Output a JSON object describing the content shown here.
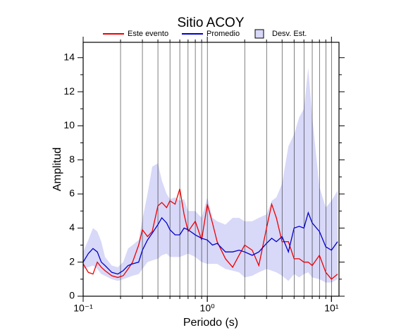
{
  "chart_data": {
    "type": "line",
    "title": "Sitio ACOY",
    "xlabel": "Periodo (s)",
    "ylabel": "Amplitud",
    "x_log": true,
    "grid": true,
    "xlim": [
      0.1,
      11.5
    ],
    "ylim": [
      0,
      14.9
    ],
    "xticks": [
      {
        "value": 0.1,
        "label": "10⁻¹"
      },
      {
        "value": 1,
        "label": "10⁰"
      },
      {
        "value": 10,
        "label": "10¹"
      }
    ],
    "yticks": [
      0,
      2,
      4,
      6,
      8,
      10,
      12,
      14
    ],
    "x": [
      0.1,
      0.11,
      0.12,
      0.13,
      0.14,
      0.15,
      0.17,
      0.19,
      0.21,
      0.23,
      0.25,
      0.28,
      0.3,
      0.33,
      0.36,
      0.4,
      0.43,
      0.47,
      0.5,
      0.55,
      0.6,
      0.65,
      0.7,
      0.8,
      0.9,
      1.0,
      1.1,
      1.2,
      1.4,
      1.6,
      1.8,
      2.0,
      2.3,
      2.6,
      3.0,
      3.3,
      3.6,
      4.0,
      4.5,
      5.0,
      5.5,
      6.0,
      6.5,
      7.0,
      8.0,
      9.0,
      10,
      11.2
    ],
    "series": [
      {
        "name": "Desv. Est.",
        "color": "#d8d8f8",
        "kind": "band",
        "upper": [
          2.6,
          3.3,
          4.0,
          3.8,
          3.2,
          2.3,
          1.8,
          1.7,
          2.0,
          2.8,
          3.0,
          3.3,
          4.5,
          6.0,
          7.6,
          7.8,
          6.8,
          6.0,
          5.7,
          5.8,
          5.6,
          5.7,
          5.0,
          5.0,
          4.6,
          5.8,
          4.6,
          4.4,
          4.2,
          4.6,
          4.6,
          4.4,
          4.4,
          4.6,
          4.8,
          5.6,
          5.8,
          6.6,
          8.8,
          9.5,
          10.5,
          11.0,
          13.4,
          10.5,
          6.4,
          5.2,
          5.6,
          6.2
        ],
        "lower": [
          1.6,
          1.7,
          1.8,
          1.6,
          1.3,
          1.2,
          1.0,
          0.9,
          1.0,
          1.1,
          1.2,
          1.3,
          1.6,
          2.0,
          2.1,
          2.2,
          2.4,
          2.5,
          2.3,
          2.3,
          2.3,
          2.4,
          2.5,
          2.3,
          2.0,
          1.9,
          1.9,
          1.9,
          1.6,
          1.5,
          1.4,
          1.1,
          1.2,
          1.4,
          1.6,
          1.5,
          1.4,
          1.2,
          0.9,
          1.3,
          1.1,
          1.3,
          1.4,
          1.1,
          1.0,
          0.8,
          0.8,
          1.0
        ]
      },
      {
        "name": "Este evento",
        "color": "#ee0000",
        "kind": "line",
        "values": [
          1.9,
          1.4,
          1.3,
          2.0,
          1.7,
          1.5,
          1.2,
          1.1,
          1.2,
          1.6,
          2.0,
          3.0,
          3.9,
          3.5,
          3.8,
          5.3,
          5.5,
          5.2,
          5.6,
          5.4,
          6.3,
          4.8,
          3.8,
          4.4,
          3.3,
          5.4,
          4.3,
          3.2,
          2.2,
          1.7,
          2.4,
          3.0,
          2.7,
          1.8,
          4.0,
          5.4,
          4.6,
          3.2,
          3.2,
          2.2,
          2.2,
          2.0,
          2.0,
          1.8,
          2.4,
          1.4,
          1.0,
          1.3
        ]
      },
      {
        "name": "Promedio",
        "color": "#0000cc",
        "kind": "line",
        "values": [
          2.0,
          2.5,
          2.8,
          2.6,
          2.0,
          1.8,
          1.4,
          1.3,
          1.5,
          1.8,
          1.9,
          2.0,
          2.7,
          3.3,
          3.7,
          4.2,
          4.6,
          4.3,
          3.9,
          3.6,
          3.6,
          4.0,
          3.9,
          3.6,
          3.4,
          3.3,
          3.0,
          3.1,
          2.6,
          2.6,
          2.7,
          2.6,
          2.4,
          2.6,
          3.1,
          3.4,
          3.2,
          3.5,
          2.6,
          4.0,
          4.1,
          4.0,
          4.9,
          4.3,
          3.8,
          2.9,
          2.7,
          3.2
        ]
      }
    ]
  }
}
